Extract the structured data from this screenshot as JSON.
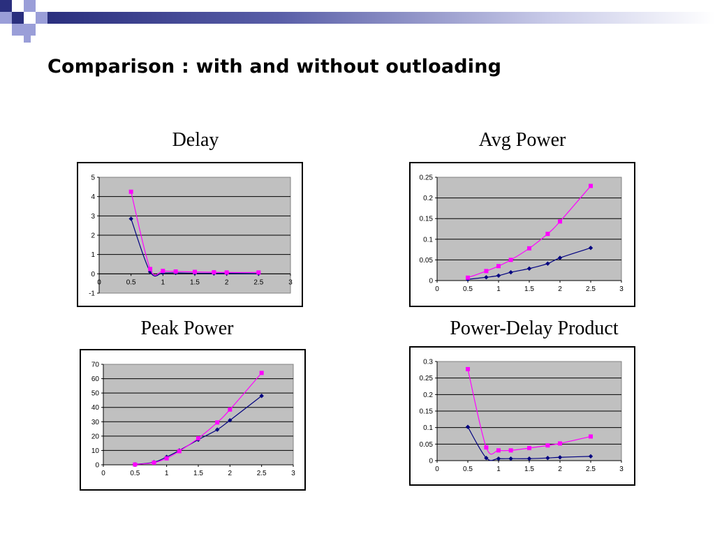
{
  "slide": {
    "title": "Comparison : with and without outloading"
  },
  "colors": {
    "deco_navy": "#2a2f7e",
    "deco_lavender": "#9a9ed8",
    "plot_area": "#c0c0c0",
    "series_without": "#000080",
    "series_with": "#ff00ff"
  },
  "chart_data": [
    {
      "type": "line",
      "title": "Delay",
      "xlim": [
        0,
        3
      ],
      "ylim": [
        -1,
        5
      ],
      "xticks": [
        "0",
        "0.5",
        "1",
        "1.5",
        "2",
        "2.5",
        "3"
      ],
      "yticks": [
        "-1",
        "0",
        "1",
        "2",
        "3",
        "4",
        "5"
      ],
      "xtick_values": [
        0,
        0.5,
        1,
        1.5,
        2,
        2.5,
        3
      ],
      "ytick_values": [
        -1,
        0,
        1,
        2,
        3,
        4,
        5
      ],
      "grid": true,
      "series": [
        {
          "color": "#000080",
          "marker": "diamond",
          "x": [
            0.5,
            0.8,
            1.0,
            1.2,
            1.5,
            1.8,
            2.0,
            2.5
          ],
          "y": [
            2.85,
            0.1,
            0.05,
            0.05,
            0.03,
            0.02,
            0.02,
            0.01
          ]
        },
        {
          "color": "#ff00ff",
          "marker": "square",
          "x": [
            0.5,
            0.8,
            1.0,
            1.2,
            1.5,
            1.8,
            2.0,
            2.5
          ],
          "y": [
            4.25,
            0.25,
            0.15,
            0.12,
            0.1,
            0.08,
            0.07,
            0.07
          ]
        }
      ]
    },
    {
      "type": "line",
      "title": "Avg Power",
      "xlim": [
        0,
        3
      ],
      "ylim": [
        0,
        0.25
      ],
      "xticks": [
        "0",
        "0.5",
        "1",
        "1.5",
        "2",
        "2.5",
        "3"
      ],
      "yticks": [
        "0",
        "0.05",
        "0.1",
        "0.15",
        "0.2",
        "0.25"
      ],
      "xtick_values": [
        0,
        0.5,
        1,
        1.5,
        2,
        2.5,
        3
      ],
      "ytick_values": [
        0,
        0.05,
        0.1,
        0.15,
        0.2,
        0.25
      ],
      "grid": true,
      "series": [
        {
          "color": "#000080",
          "marker": "diamond",
          "x": [
            0.5,
            0.8,
            1.0,
            1.2,
            1.5,
            1.8,
            2.0,
            2.5
          ],
          "y": [
            0.003,
            0.008,
            0.012,
            0.02,
            0.029,
            0.041,
            0.055,
            0.079
          ]
        },
        {
          "color": "#ff00ff",
          "marker": "square",
          "x": [
            0.5,
            0.8,
            1.0,
            1.2,
            1.5,
            1.8,
            2.0,
            2.5
          ],
          "y": [
            0.007,
            0.023,
            0.035,
            0.05,
            0.078,
            0.113,
            0.143,
            0.229
          ]
        }
      ]
    },
    {
      "type": "line",
      "title": "Peak Power",
      "xlim": [
        0,
        3
      ],
      "ylim": [
        0,
        70
      ],
      "xticks": [
        "0",
        "0.5",
        "1",
        "1.5",
        "2",
        "2.5",
        "3"
      ],
      "yticks": [
        "0",
        "10",
        "20",
        "30",
        "40",
        "50",
        "60",
        "70"
      ],
      "xtick_values": [
        0,
        0.5,
        1,
        1.5,
        2,
        2.5,
        3
      ],
      "ytick_values": [
        0,
        10,
        20,
        30,
        40,
        50,
        60,
        70
      ],
      "grid": true,
      "series": [
        {
          "color": "#000080",
          "marker": "diamond",
          "x": [
            0.5,
            0.8,
            1.0,
            1.2,
            1.5,
            1.8,
            2.0,
            2.5
          ],
          "y": [
            0.3,
            1.8,
            5.5,
            10,
            17.5,
            24.5,
            31,
            48
          ]
        },
        {
          "color": "#ff00ff",
          "marker": "square",
          "x": [
            0.5,
            0.8,
            1.0,
            1.2,
            1.5,
            1.8,
            2.0,
            2.5
          ],
          "y": [
            0.2,
            1.5,
            4.5,
            9.5,
            18.5,
            29.5,
            38.5,
            64
          ]
        }
      ]
    },
    {
      "type": "line",
      "title": "Power-Delay Product",
      "xlim": [
        0,
        3
      ],
      "ylim": [
        0,
        0.3
      ],
      "xticks": [
        "0",
        "0.5",
        "1",
        "1.5",
        "2",
        "2.5",
        "3"
      ],
      "yticks": [
        "0",
        "0.05",
        "0.1",
        "0.15",
        "0.2",
        "0.25",
        "0.3"
      ],
      "xtick_values": [
        0,
        0.5,
        1,
        1.5,
        2,
        2.5,
        3
      ],
      "ytick_values": [
        0,
        0.05,
        0.1,
        0.15,
        0.2,
        0.25,
        0.3
      ],
      "grid": true,
      "series": [
        {
          "color": "#000080",
          "marker": "diamond",
          "x": [
            0.5,
            0.8,
            1.0,
            1.2,
            1.5,
            1.8,
            2.0,
            2.5
          ],
          "y": [
            0.102,
            0.008,
            0.006,
            0.006,
            0.006,
            0.008,
            0.01,
            0.013
          ]
        },
        {
          "color": "#ff00ff",
          "marker": "square",
          "x": [
            0.5,
            0.8,
            1.0,
            1.2,
            1.5,
            1.8,
            2.0,
            2.5
          ],
          "y": [
            0.277,
            0.04,
            0.031,
            0.031,
            0.038,
            0.046,
            0.052,
            0.073
          ]
        }
      ]
    }
  ]
}
